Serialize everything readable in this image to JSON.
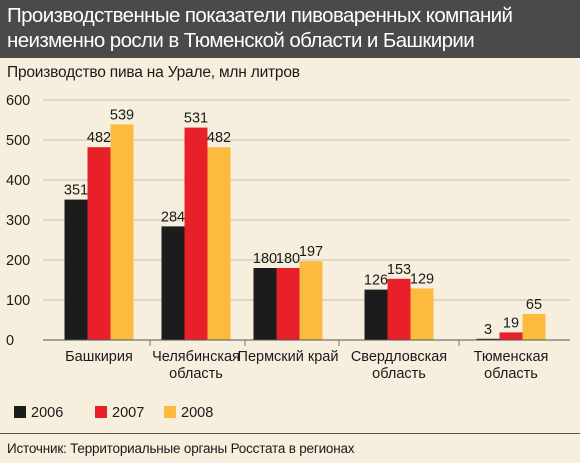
{
  "header": {
    "title": "Производственные показатели пивоваренных компаний неизменно росли в Тюменской области и Башкирии"
  },
  "source": "Источник: Территориальные органы Росстата в регионах",
  "colors": {
    "s2006": "#1c1c1c",
    "s2007": "#e8202a",
    "s2008": "#fcbb3f",
    "grid": "#c9c1ae"
  },
  "chart_data": {
    "type": "bar",
    "title": "Производство пива на Урале, млн литров",
    "xlabel": "",
    "ylabel": "",
    "ylim": [
      0,
      600
    ],
    "yticks": [
      "0",
      "100",
      "200",
      "300",
      "400",
      "500",
      "600"
    ],
    "categories": [
      [
        "Башкирия"
      ],
      [
        "Челябинская",
        "область"
      ],
      [
        "Пермский край"
      ],
      [
        "Свердловская",
        "область"
      ],
      [
        "Тюменская",
        "область"
      ]
    ],
    "series": [
      {
        "name": "2006",
        "values": [
          351,
          284,
          180,
          126,
          3
        ],
        "labels": [
          "351",
          "284",
          "180",
          "126",
          "3"
        ]
      },
      {
        "name": "2007",
        "values": [
          482,
          531,
          180,
          153,
          19
        ],
        "labels": [
          "482",
          "531",
          "180",
          "153",
          "19"
        ]
      },
      {
        "name": "2008",
        "values": [
          539,
          482,
          197,
          129,
          65
        ],
        "labels": [
          "539",
          "482",
          "197",
          "129",
          "65"
        ]
      }
    ],
    "grid": true,
    "legend": "bottom-left"
  }
}
